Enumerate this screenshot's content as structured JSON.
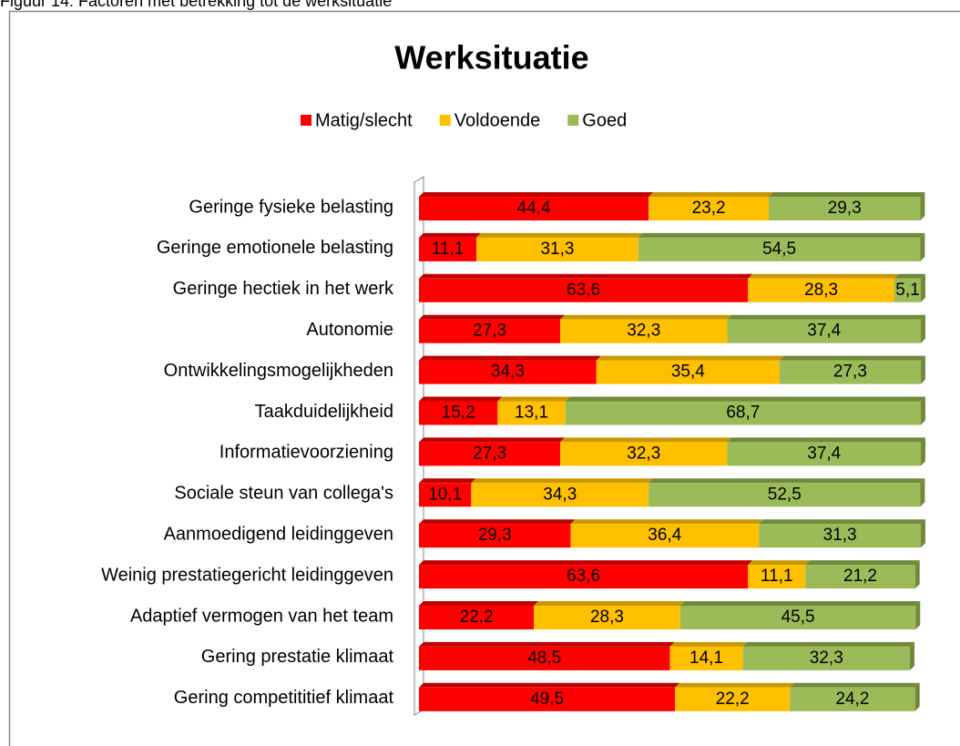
{
  "caption": "Figuur 14: Factoren met betrekking tot de werksituatie",
  "chart_data": {
    "type": "stacked-bar-horizontal",
    "title": "Werksituatie",
    "categories": [
      "Geringe fysieke belasting",
      "Geringe emotionele belasting",
      "Geringe hectiek in het werk",
      "Autonomie",
      "Ontwikkelingsmogelijkheden",
      "Taakduidelijkheid",
      "Informatievoorziening",
      "Sociale steun van collega's",
      "Aanmoedigend leidinggeven",
      "Weinig prestatiegericht leidinggeven",
      "Adaptief vermogen van het team",
      "Gering prestatie klimaat",
      "Gering competititief klimaat"
    ],
    "xlim": [
      0,
      100
    ],
    "legend": "top",
    "series": [
      {
        "name": "Matig/slecht",
        "color": "#ff0000",
        "top_color": "#c00000",
        "values": [
          44.4,
          11.1,
          63.6,
          27.3,
          34.3,
          15.2,
          27.3,
          10.1,
          29.3,
          63.6,
          22.2,
          48.5,
          49.5
        ],
        "value_labels": [
          "44,4",
          "11,1",
          "63,6",
          "27,3",
          "34,3",
          "15,2",
          "27,3",
          "10,1",
          "29,3",
          "63,6",
          "22,2",
          "48,5",
          "49,5"
        ]
      },
      {
        "name": "Voldoende",
        "color": "#ffc000",
        "top_color": "#c99800",
        "values": [
          23.2,
          31.3,
          28.3,
          32.3,
          35.4,
          13.1,
          32.3,
          34.3,
          36.4,
          11.1,
          28.3,
          14.1,
          22.2
        ],
        "value_labels": [
          "23,2",
          "31,3",
          "28,3",
          "32,3",
          "35,4",
          "13,1",
          "32,3",
          "34,3",
          "36,4",
          "11,1",
          "28,3",
          "14,1",
          "22,2"
        ]
      },
      {
        "name": "Goed",
        "color": "#9bbb59",
        "top_color": "#6f8a3a",
        "values": [
          29.3,
          54.5,
          5.1,
          37.4,
          27.3,
          68.7,
          37.4,
          52.5,
          31.3,
          21.2,
          45.5,
          32.3,
          24.2
        ],
        "value_labels": [
          "29,3",
          "54,5",
          "5,1",
          "37,4",
          "27,3",
          "68,7",
          "37,4",
          "52,5",
          "31,3",
          "21,2",
          "45,5",
          "32,3",
          "24,2"
        ]
      }
    ]
  }
}
